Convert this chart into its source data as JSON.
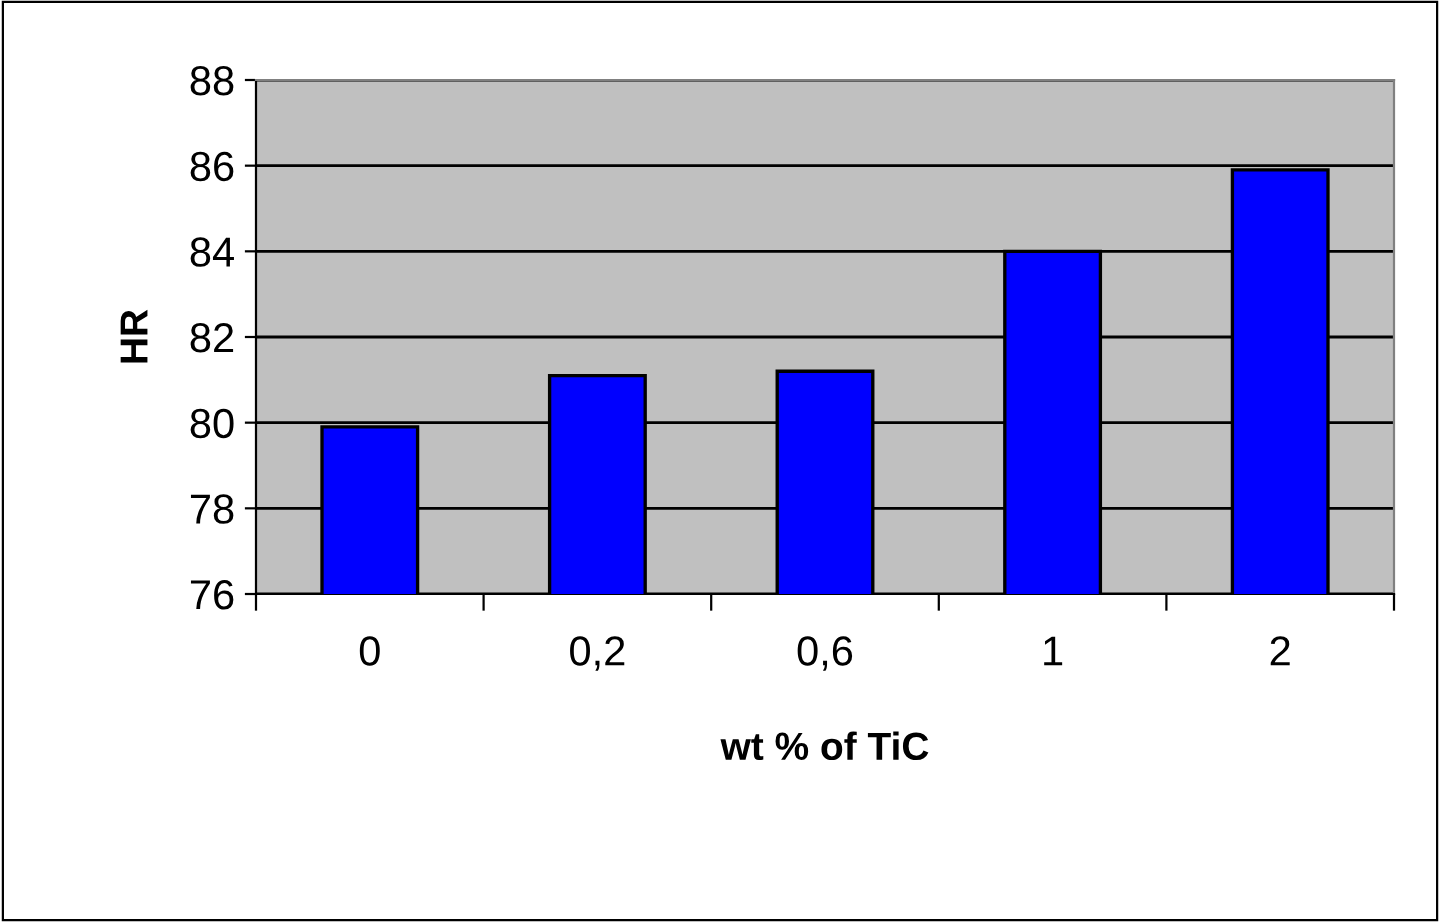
{
  "chart_data": {
    "type": "bar",
    "xlabel": "wt % of TiC",
    "ylabel": "HR",
    "categories": [
      "0",
      "0,2",
      "0,6",
      "1",
      "2"
    ],
    "values": [
      79.9,
      81.1,
      81.2,
      84.0,
      85.9
    ],
    "color": "#0000ff",
    "ylim": [
      76,
      88
    ],
    "yticks": [
      76,
      78,
      80,
      82,
      84,
      86,
      88
    ],
    "grid": "y",
    "legend": false
  }
}
